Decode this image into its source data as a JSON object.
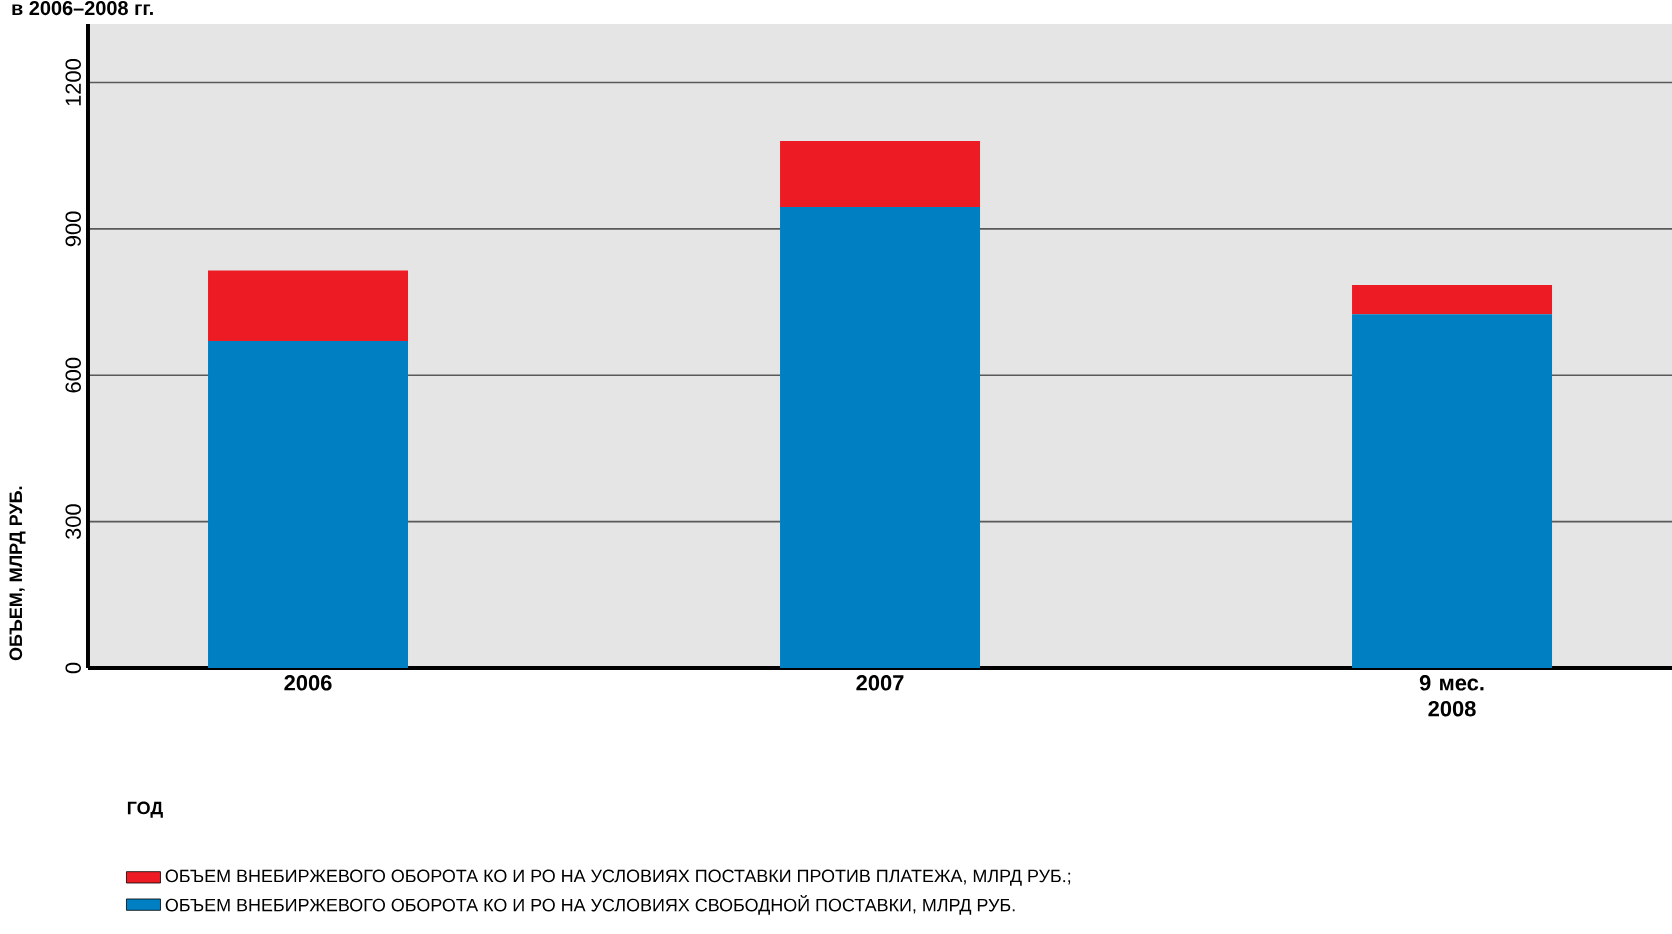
{
  "chart_data": {
    "type": "bar",
    "title": "в 2006–2008 гг.",
    "stacked": true,
    "categories": [
      "2006",
      "2007",
      "9 мес. 2008"
    ],
    "series": [
      {
        "name": "ОБЪЕМ ВНЕБИРЖЕВОГО ОБОРОТА КО И РО НА УСЛОВИЯХ СВОБОДНОЙ ПОСТАВКИ, МЛРД РУБ.",
        "color": "#0080c3",
        "values": [
          670,
          945,
          725
        ]
      },
      {
        "name": "ОБЪЕМ ВНЕБИРЖЕВОГО ОБОРОТА КО И РО НА УСЛОВИЯХ ПОСТАВКИ ПРОТИВ ПЛАТЕЖА, МЛРД РУБ.;",
        "color": "#ed1c24",
        "values": [
          145,
          135,
          60
        ]
      }
    ],
    "xlabel": "ГОД",
    "ylabel": "ОБЪЕМ, МЛРД РУБ.",
    "ylim": [
      0,
      1320
    ],
    "yticks": [
      0,
      300,
      600,
      900,
      1200
    ],
    "grid": "y",
    "legend": "bottom"
  }
}
